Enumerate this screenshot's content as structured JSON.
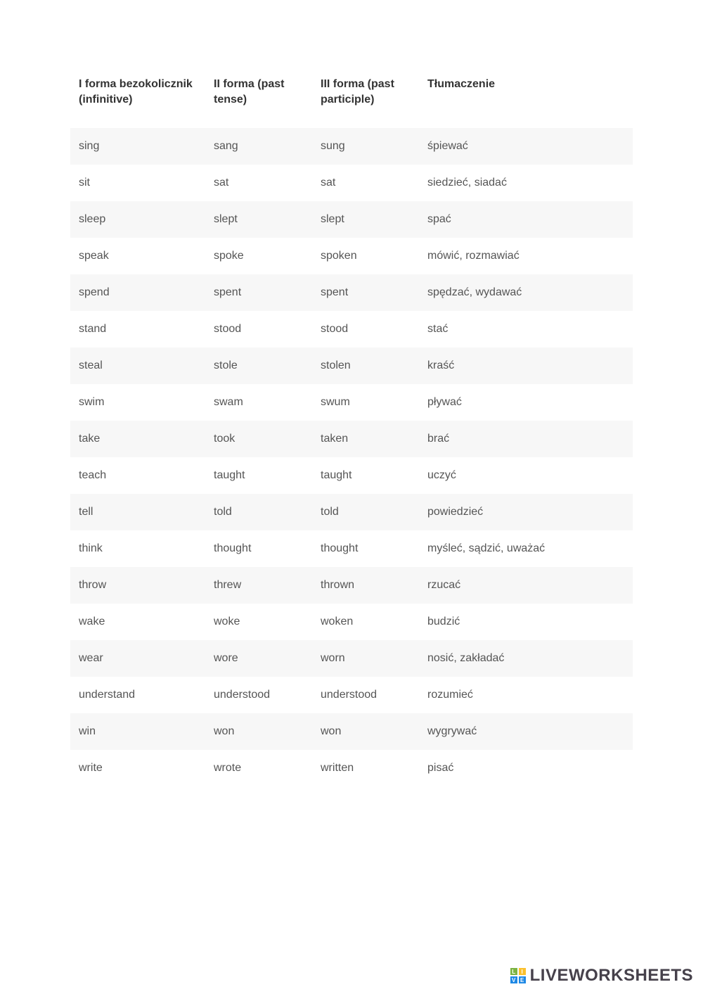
{
  "table": {
    "headers": {
      "col1": "I forma bezokolicznik (infinitive)",
      "col2": "II forma (past tense)",
      "col3": "III forma (past participle)",
      "col4": "Tłumaczenie"
    },
    "rows": [
      {
        "c1": "sing",
        "c2": "sang",
        "c3": "sung",
        "c4": "śpiewać"
      },
      {
        "c1": "sit",
        "c2": "sat",
        "c3": "sat",
        "c4": "siedzieć, siadać"
      },
      {
        "c1": "sleep",
        "c2": "slept",
        "c3": "slept",
        "c4": "spać"
      },
      {
        "c1": "speak",
        "c2": "spoke",
        "c3": "spoken",
        "c4": "mówić, rozmawiać"
      },
      {
        "c1": "spend",
        "c2": "spent",
        "c3": "spent",
        "c4": "spędzać, wydawać"
      },
      {
        "c1": "stand",
        "c2": "stood",
        "c3": "stood",
        "c4": "stać"
      },
      {
        "c1": "steal",
        "c2": "stole",
        "c3": "stolen",
        "c4": "kraść"
      },
      {
        "c1": "swim",
        "c2": "swam",
        "c3": "swum",
        "c4": "pływać"
      },
      {
        "c1": "take",
        "c2": "took",
        "c3": "taken",
        "c4": "brać"
      },
      {
        "c1": "teach",
        "c2": "taught",
        "c3": "taught",
        "c4": "uczyć"
      },
      {
        "c1": "tell",
        "c2": "told",
        "c3": "told",
        "c4": "powiedzieć"
      },
      {
        "c1": "think",
        "c2": "thought",
        "c3": "thought",
        "c4": "myśleć, sądzić, uważać"
      },
      {
        "c1": "throw",
        "c2": "threw",
        "c3": "thrown",
        "c4": "rzucać"
      },
      {
        "c1": "wake",
        "c2": "woke",
        "c3": "woken",
        "c4": "budzić"
      },
      {
        "c1": "wear",
        "c2": "wore",
        "c3": "worn",
        "c4": "nosić, zakładać"
      },
      {
        "c1": "understand",
        "c2": "understood",
        "c3": "understood",
        "c4": "rozumieć"
      },
      {
        "c1": "win",
        "c2": "won",
        "c3": "won",
        "c4": "wygrywać"
      },
      {
        "c1": "write",
        "c2": "wrote",
        "c3": "written",
        "c4": "pisać"
      }
    ],
    "striping": {
      "odd_bg": "#f7f7f7",
      "even_bg": "#ffffff"
    },
    "header_fontsize": 16,
    "cell_fontsize": 16,
    "header_color": "#333333",
    "cell_color": "#555555"
  },
  "watermark": {
    "text": "LIVEWORKSHEETS",
    "logo_colors": {
      "tl": "#7cb342",
      "tr": "#fbc02d",
      "bl": "#1e88e5",
      "br": "#1e88e5"
    },
    "logo_letters": {
      "tl": "L",
      "tr": "I",
      "bl": "V",
      "br": "E"
    }
  }
}
